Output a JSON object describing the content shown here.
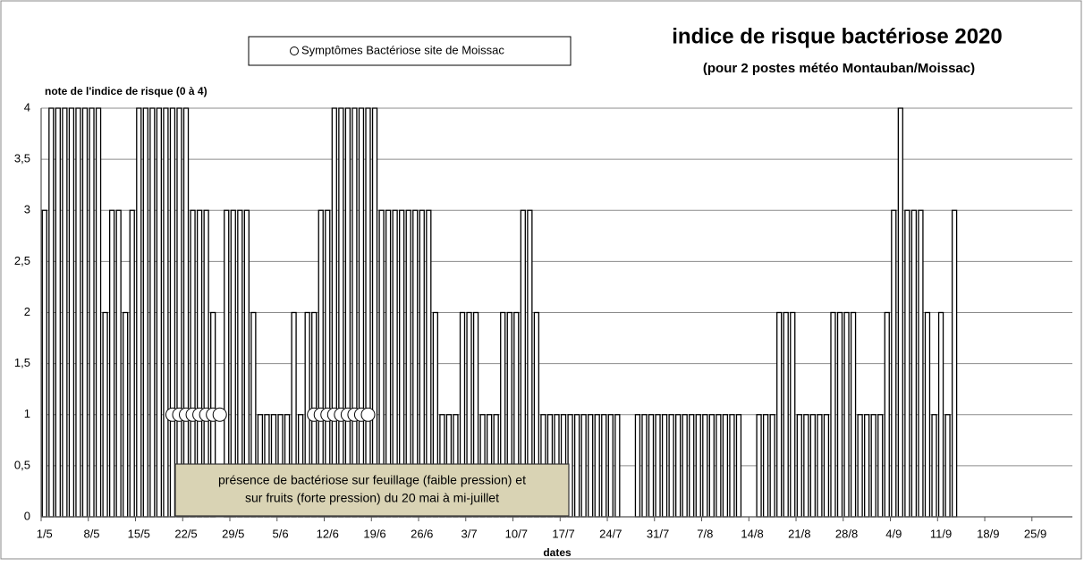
{
  "chart_data": {
    "type": "bar",
    "title": "indice de risque bactériose 2020",
    "subtitle": "(pour 2 postes météo Montauban/Moissac)",
    "y_label": "note de l'indice de risque (0 à 4)",
    "x_label": "dates",
    "annotation": [
      "présence de bactériose sur feuillage (faible pression) et",
      "sur fruits (forte pression) du 20 mai à mi-juillet"
    ],
    "color": "#ffffff",
    "edge_color": "#000000",
    "grid": true,
    "ylim": [
      0,
      4
    ],
    "yticks": [
      0,
      {
        "value": 0.5,
        "label": "0,5"
      },
      1,
      {
        "value": 1.5,
        "label": "1,5"
      },
      2,
      {
        "value": 2.5,
        "label": "2,5"
      },
      3,
      {
        "value": 3.5,
        "label": "3,5"
      },
      4
    ],
    "categories": [
      "1/5",
      null,
      null,
      null,
      null,
      null,
      null,
      "8/5",
      null,
      null,
      null,
      null,
      null,
      null,
      "15/5",
      null,
      null,
      null,
      null,
      null,
      null,
      "22/5",
      null,
      null,
      null,
      null,
      null,
      null,
      "29/5",
      null,
      null,
      null,
      null,
      null,
      null,
      "5/6",
      null,
      null,
      null,
      null,
      null,
      null,
      "12/6",
      null,
      null,
      null,
      null,
      null,
      null,
      "19/6",
      null,
      null,
      null,
      null,
      null,
      null,
      "26/6",
      null,
      null,
      null,
      null,
      null,
      null,
      "3/7",
      null,
      null,
      null,
      null,
      null,
      null,
      "10/7",
      null,
      null,
      null,
      null,
      null,
      null,
      "17/7",
      null,
      null,
      null,
      null,
      null,
      null,
      "24/7",
      null,
      null,
      null,
      null,
      null,
      null,
      "31/7",
      null,
      null,
      null,
      null,
      null,
      null,
      "7/8",
      null,
      null,
      null,
      null,
      null,
      null,
      "14/8",
      null,
      null,
      null,
      null,
      null,
      null,
      "21/8",
      null,
      null,
      null,
      null,
      null,
      null,
      "28/8",
      null,
      null,
      null,
      null,
      null,
      null,
      "4/9",
      null,
      null,
      null,
      null,
      null,
      null,
      "11/9",
      null,
      null,
      null,
      null,
      null,
      null,
      "18/9",
      null,
      null,
      null,
      null,
      null,
      null,
      "25/9",
      null,
      null,
      null,
      null,
      null
    ],
    "values": [
      3,
      4,
      4,
      4,
      4,
      4,
      4,
      4,
      4,
      2,
      3,
      3,
      2,
      3,
      4,
      4,
      4,
      4,
      4,
      4,
      4,
      4,
      3,
      3,
      3,
      2,
      0,
      3,
      3,
      3,
      3,
      2,
      1,
      1,
      1,
      1,
      1,
      2,
      1,
      2,
      2,
      3,
      3,
      4,
      4,
      4,
      4,
      4,
      4,
      4,
      3,
      3,
      3,
      3,
      3,
      3,
      3,
      3,
      2,
      1,
      1,
      1,
      2,
      2,
      2,
      1,
      1,
      1,
      2,
      2,
      2,
      3,
      3,
      2,
      1,
      1,
      1,
      1,
      1,
      1,
      1,
      1,
      1,
      1,
      1,
      1,
      0,
      0,
      1,
      1,
      1,
      1,
      1,
      1,
      1,
      1,
      1,
      1,
      1,
      1,
      1,
      1,
      1,
      1,
      0,
      0,
      1,
      1,
      1,
      2,
      2,
      2,
      1,
      1,
      1,
      1,
      1,
      2,
      2,
      2,
      2,
      1,
      1,
      1,
      1,
      2,
      3,
      4,
      3,
      3,
      3,
      2,
      1,
      2,
      1,
      3,
      0,
      0,
      0,
      0,
      0,
      0,
      0,
      0,
      0,
      0,
      0,
      0,
      0,
      0,
      0,
      0,
      0
    ],
    "series": [
      {
        "name": "Symptômes Bactériose site de Moissac",
        "type": "scatter",
        "color": "#ffffff",
        "values": [
          null,
          null,
          null,
          null,
          null,
          null,
          null,
          null,
          null,
          null,
          null,
          null,
          null,
          null,
          null,
          null,
          null,
          null,
          null,
          1,
          1,
          1,
          1,
          1,
          1,
          1,
          1,
          null,
          null,
          null,
          null,
          null,
          null,
          null,
          null,
          null,
          null,
          null,
          null,
          null,
          1,
          1,
          1,
          1,
          1,
          1,
          1,
          1,
          1,
          null,
          null,
          null,
          null,
          null,
          null,
          null,
          null,
          null,
          null,
          null,
          null,
          null,
          null,
          null,
          null,
          null,
          null,
          null,
          null,
          null,
          null,
          null,
          null,
          null,
          null,
          null,
          null,
          null,
          null,
          null,
          null,
          null,
          null,
          null,
          null,
          null,
          null,
          null,
          null,
          null,
          null,
          null,
          null,
          null,
          null,
          null,
          null,
          null,
          null,
          null,
          null,
          null,
          null,
          null,
          null,
          null,
          null,
          null,
          null,
          null,
          null,
          null,
          null,
          null,
          null,
          null,
          null,
          null,
          null,
          null,
          null,
          null,
          null,
          null,
          null,
          null,
          null,
          null,
          null,
          null,
          null,
          null,
          null,
          null,
          null,
          null,
          null,
          null,
          null,
          null,
          null,
          null,
          null,
          null,
          null,
          null,
          null,
          null,
          null,
          null,
          null,
          null,
          null
        ]
      }
    ]
  }
}
